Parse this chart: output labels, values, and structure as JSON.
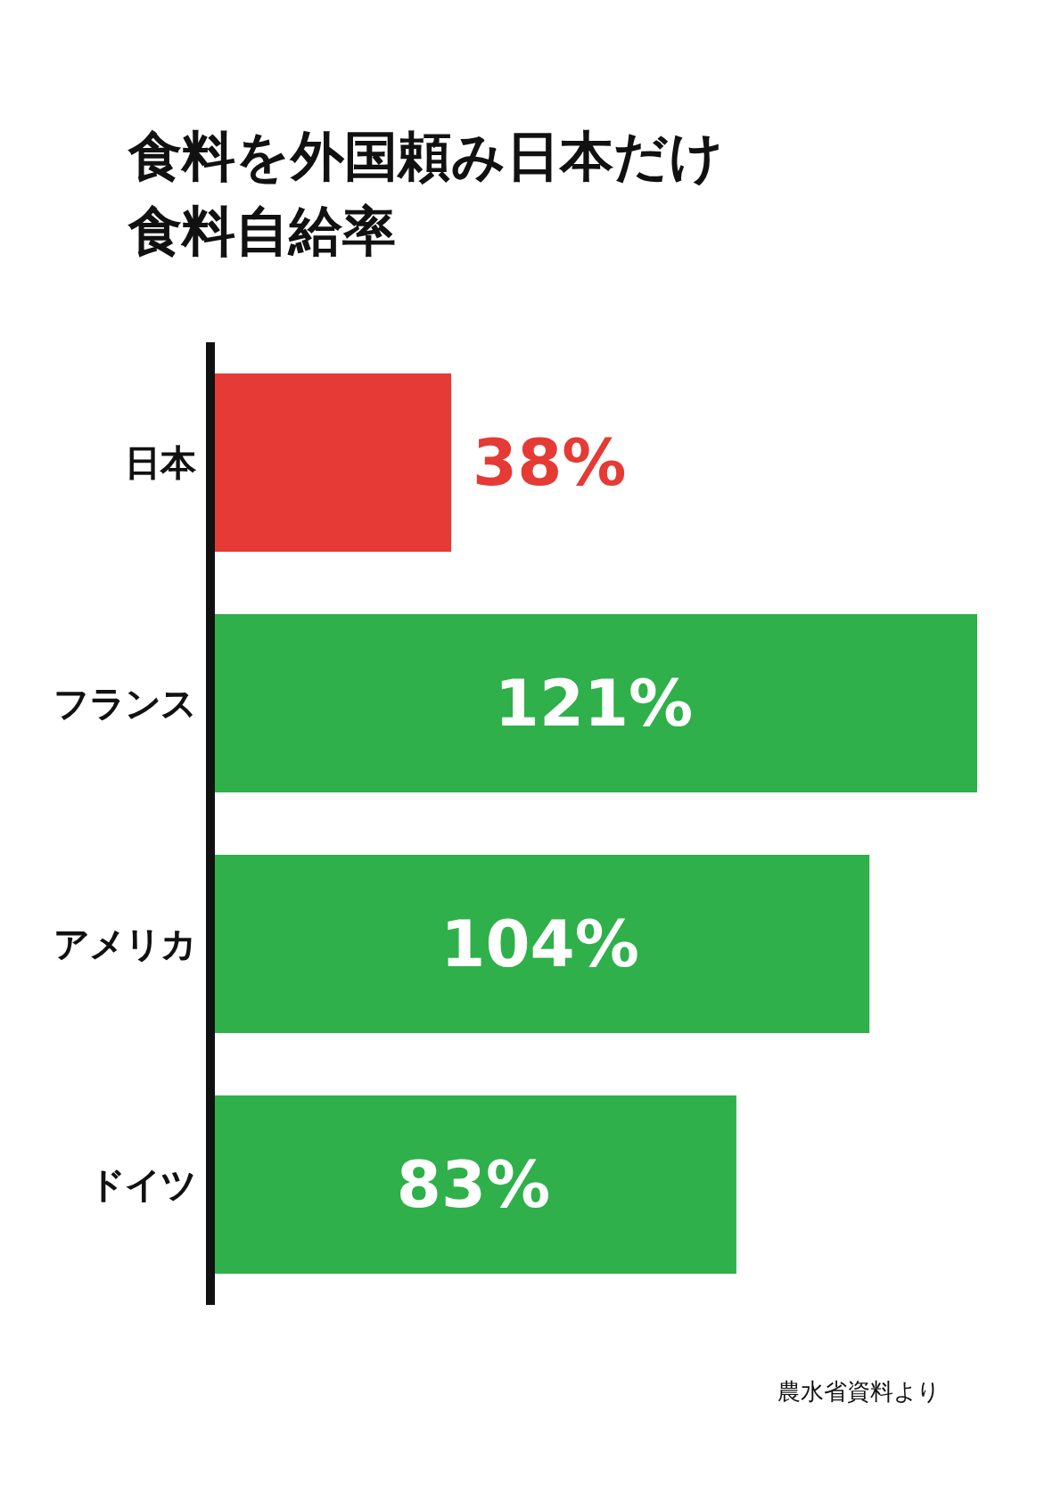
{
  "chart_data": {
    "type": "bar",
    "orientation": "horizontal",
    "title": "食料を外国頼み日本だけ",
    "subtitle": "食料自給率",
    "categories": [
      "日本",
      "フランス",
      "アメリカ",
      "ドイツ"
    ],
    "values": [
      38,
      121,
      104,
      83
    ],
    "colors": [
      "#e53a35",
      "#2fb04a",
      "#2fb04a",
      "#2fb04a"
    ],
    "value_labels": [
      "38%",
      "121%",
      "104%",
      "83%"
    ],
    "tick_labels": "y",
    "annotations": [
      "農水省資料より"
    ]
  }
}
